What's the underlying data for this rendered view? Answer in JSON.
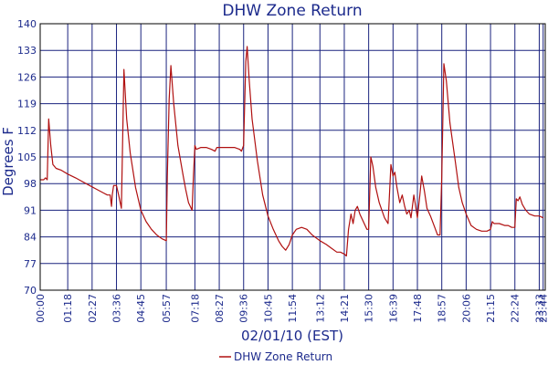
{
  "chart_data": {
    "type": "line",
    "title": "DHW Zone Return",
    "xlabel": "02/01/10 (EST)",
    "ylabel": "Degrees F",
    "ylim": [
      70,
      140
    ],
    "y_ticks": [
      "70",
      "77",
      "84",
      "91",
      "98",
      "105",
      "112",
      "119",
      "126",
      "133",
      "140"
    ],
    "x_ticks": [
      "00:00",
      "01:18",
      "02:27",
      "03:36",
      "04:45",
      "05:57",
      "07:18",
      "08:27",
      "09:36",
      "10:45",
      "11:54",
      "13:12",
      "14:21",
      "15:30",
      "16:39",
      "17:48",
      "18:57",
      "20:06",
      "21:15",
      "22:24",
      "23:33",
      "23:44"
    ],
    "grid": true,
    "legend_position": "bottom",
    "line_color": "#b01010",
    "series": [
      {
        "name": "DHW Zone Return",
        "points": [
          [
            "00:00",
            99
          ],
          [
            "00:10",
            99
          ],
          [
            "00:15",
            99.5
          ],
          [
            "00:20",
            99
          ],
          [
            "00:24",
            115
          ],
          [
            "00:30",
            108
          ],
          [
            "00:36",
            103
          ],
          [
            "00:45",
            102
          ],
          [
            "01:00",
            101.5
          ],
          [
            "01:18",
            100.5
          ],
          [
            "01:40",
            99.5
          ],
          [
            "02:00",
            98.5
          ],
          [
            "02:20",
            97.5
          ],
          [
            "02:40",
            96.5
          ],
          [
            "03:00",
            95.5
          ],
          [
            "03:10",
            95
          ],
          [
            "03:18",
            95
          ],
          [
            "03:22",
            92
          ],
          [
            "03:24",
            95
          ],
          [
            "03:28",
            97.5
          ],
          [
            "03:36",
            97.5
          ],
          [
            "03:42",
            95
          ],
          [
            "03:50",
            91.5
          ],
          [
            "03:53",
            107
          ],
          [
            "03:57",
            128
          ],
          [
            "04:05",
            115
          ],
          [
            "04:15",
            106
          ],
          [
            "04:25",
            100
          ],
          [
            "04:30",
            97
          ],
          [
            "04:45",
            91
          ],
          [
            "05:00",
            88
          ],
          [
            "05:15",
            86
          ],
          [
            "05:30",
            84.5
          ],
          [
            "05:45",
            83.5
          ],
          [
            "05:57",
            83
          ],
          [
            "06:00",
            100
          ],
          [
            "06:05",
            120
          ],
          [
            "06:10",
            129
          ],
          [
            "06:18",
            119
          ],
          [
            "06:30",
            108
          ],
          [
            "06:45",
            100
          ],
          [
            "06:52",
            96.5
          ],
          [
            "07:00",
            93
          ],
          [
            "07:10",
            91
          ],
          [
            "07:14",
            100
          ],
          [
            "07:18",
            108
          ],
          [
            "07:22",
            107
          ],
          [
            "07:35",
            107.5
          ],
          [
            "07:50",
            107.5
          ],
          [
            "08:05",
            107
          ],
          [
            "08:15",
            106.5
          ],
          [
            "08:20",
            107.5
          ],
          [
            "08:27",
            107.5
          ],
          [
            "08:50",
            107.5
          ],
          [
            "09:10",
            107.5
          ],
          [
            "09:25",
            107
          ],
          [
            "09:30",
            106.5
          ],
          [
            "09:36",
            108
          ],
          [
            "09:42",
            130
          ],
          [
            "09:46",
            134
          ],
          [
            "09:52",
            125
          ],
          [
            "10:00",
            115
          ],
          [
            "10:15",
            104
          ],
          [
            "10:30",
            95
          ],
          [
            "10:45",
            89.5
          ],
          [
            "11:00",
            86
          ],
          [
            "11:15",
            83
          ],
          [
            "11:25",
            81.5
          ],
          [
            "11:35",
            80.5
          ],
          [
            "11:45",
            82
          ],
          [
            "11:54",
            84.5
          ],
          [
            "12:05",
            86
          ],
          [
            "12:20",
            86.5
          ],
          [
            "12:35",
            86
          ],
          [
            "12:50",
            84.5
          ],
          [
            "13:12",
            83
          ],
          [
            "13:30",
            82
          ],
          [
            "13:45",
            81
          ],
          [
            "14:00",
            80
          ],
          [
            "14:10",
            80
          ],
          [
            "14:21",
            79.5
          ],
          [
            "14:27",
            79
          ],
          [
            "14:33",
            86
          ],
          [
            "14:40",
            90
          ],
          [
            "14:46",
            87.5
          ],
          [
            "14:52",
            91
          ],
          [
            "14:58",
            92
          ],
          [
            "15:05",
            90
          ],
          [
            "15:15",
            88
          ],
          [
            "15:25",
            86
          ],
          [
            "15:30",
            86
          ],
          [
            "15:36",
            105
          ],
          [
            "15:42",
            102.5
          ],
          [
            "15:50",
            97
          ],
          [
            "16:00",
            93
          ],
          [
            "16:15",
            89
          ],
          [
            "16:25",
            87.5
          ],
          [
            "16:33",
            103
          ],
          [
            "16:39",
            100
          ],
          [
            "16:44",
            101
          ],
          [
            "16:50",
            97
          ],
          [
            "16:58",
            93
          ],
          [
            "17:05",
            95
          ],
          [
            "17:12",
            92
          ],
          [
            "17:18",
            90
          ],
          [
            "17:25",
            91
          ],
          [
            "17:30",
            89
          ],
          [
            "17:38",
            95
          ],
          [
            "17:43",
            92
          ],
          [
            "17:48",
            89
          ],
          [
            "17:55",
            95
          ],
          [
            "18:00",
            100
          ],
          [
            "18:08",
            96
          ],
          [
            "18:15",
            91.5
          ],
          [
            "18:25",
            89.5
          ],
          [
            "18:35",
            87
          ],
          [
            "18:45",
            84.5
          ],
          [
            "18:52",
            84.5
          ],
          [
            "18:57",
            100
          ],
          [
            "19:03",
            129.5
          ],
          [
            "19:10",
            125
          ],
          [
            "19:20",
            114
          ],
          [
            "19:35",
            104
          ],
          [
            "19:45",
            97
          ],
          [
            "19:55",
            93
          ],
          [
            "20:06",
            90
          ],
          [
            "20:20",
            87
          ],
          [
            "20:35",
            86
          ],
          [
            "20:50",
            85.5
          ],
          [
            "21:05",
            85.5
          ],
          [
            "21:15",
            86
          ],
          [
            "21:20",
            88
          ],
          [
            "21:25",
            87.5
          ],
          [
            "21:40",
            87.5
          ],
          [
            "21:55",
            87
          ],
          [
            "22:05",
            87
          ],
          [
            "22:15",
            86.5
          ],
          [
            "22:24",
            86.5
          ],
          [
            "22:28",
            94
          ],
          [
            "22:33",
            93.5
          ],
          [
            "22:38",
            94.5
          ],
          [
            "22:45",
            92.5
          ],
          [
            "22:55",
            91
          ],
          [
            "23:05",
            90
          ],
          [
            "23:20",
            89.5
          ],
          [
            "23:33",
            89.5
          ],
          [
            "23:44",
            89
          ]
        ]
      }
    ]
  }
}
